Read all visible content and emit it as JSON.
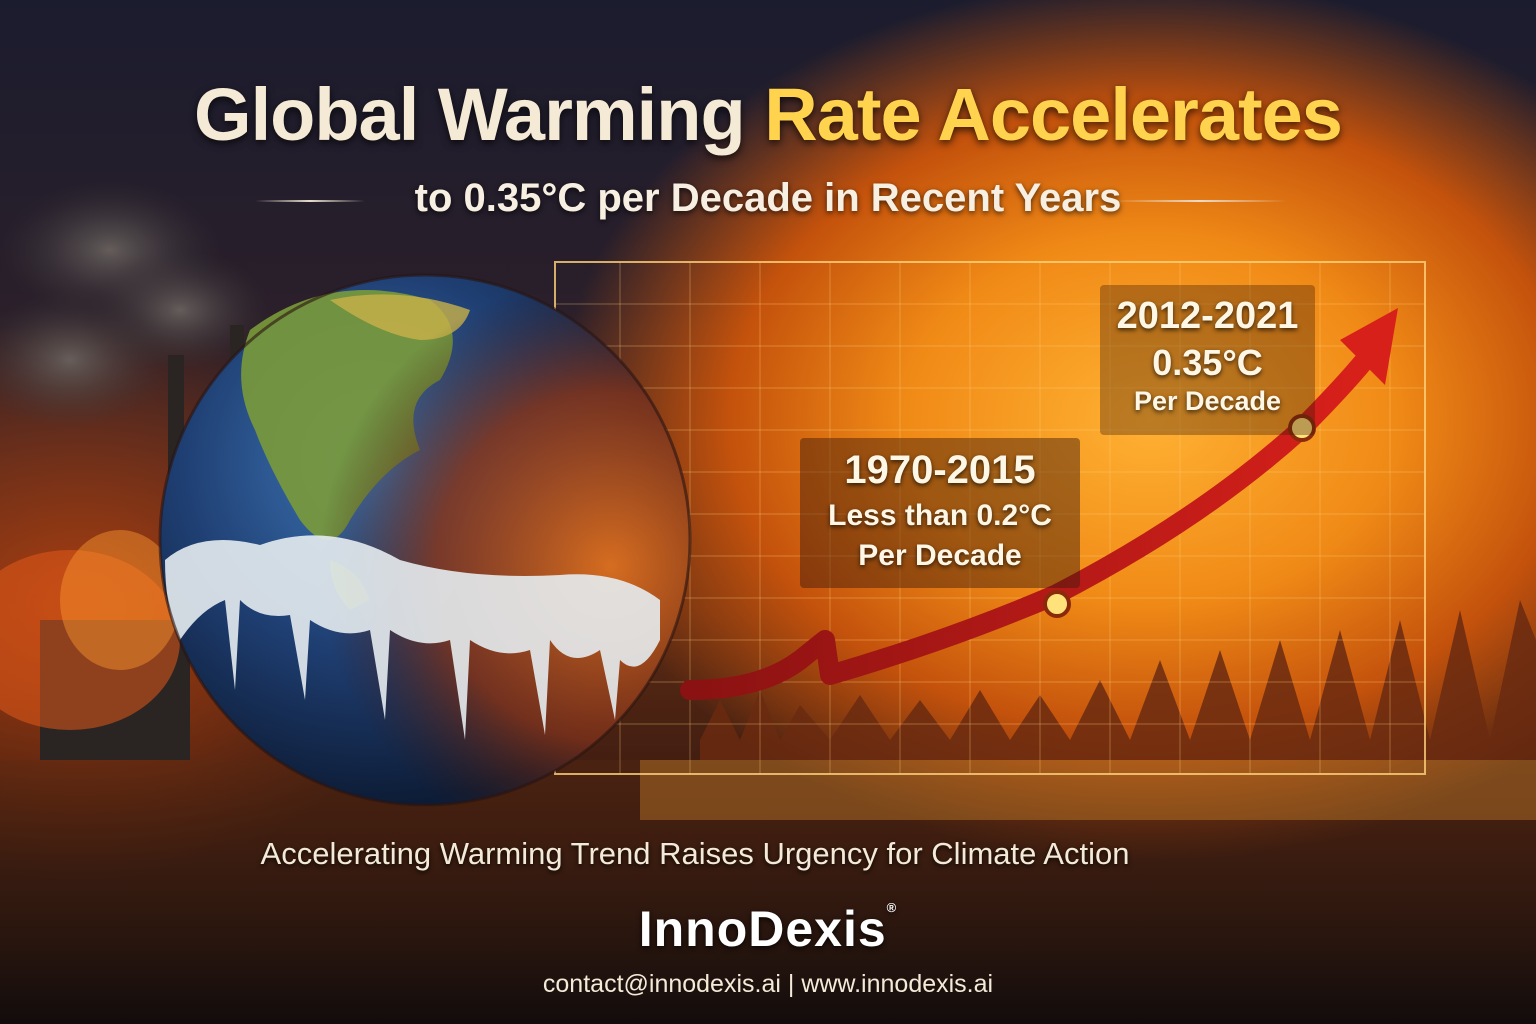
{
  "headline": {
    "part1": "Global Warming",
    "part2": "Rate Accelerates"
  },
  "subheadline": "to 0.35°C per Decade in Recent Years",
  "chart": {
    "annotation_1": {
      "years": "1970-2015",
      "line1": "Less than 0.2°C",
      "line2": "Per Decade"
    },
    "annotation_2": {
      "years": "2012-2021",
      "value": "0.35°C",
      "unit": "Per Decade"
    }
  },
  "tagline": "Accelerating Warming Trend Raises Urgency for Climate Action",
  "brand": {
    "name": "InnoDexis",
    "mark": "®"
  },
  "contact": {
    "email": "contact@innodexis.ai",
    "separator": "|",
    "website": "www.innodexis.ai"
  },
  "colors": {
    "accent_yellow": "#ffd34d",
    "arrow_red": "#b81818",
    "fire_orange": "#f08a16"
  },
  "icons": {
    "globe": "earth-globe-icon",
    "arrow": "rising-arrow-icon"
  }
}
